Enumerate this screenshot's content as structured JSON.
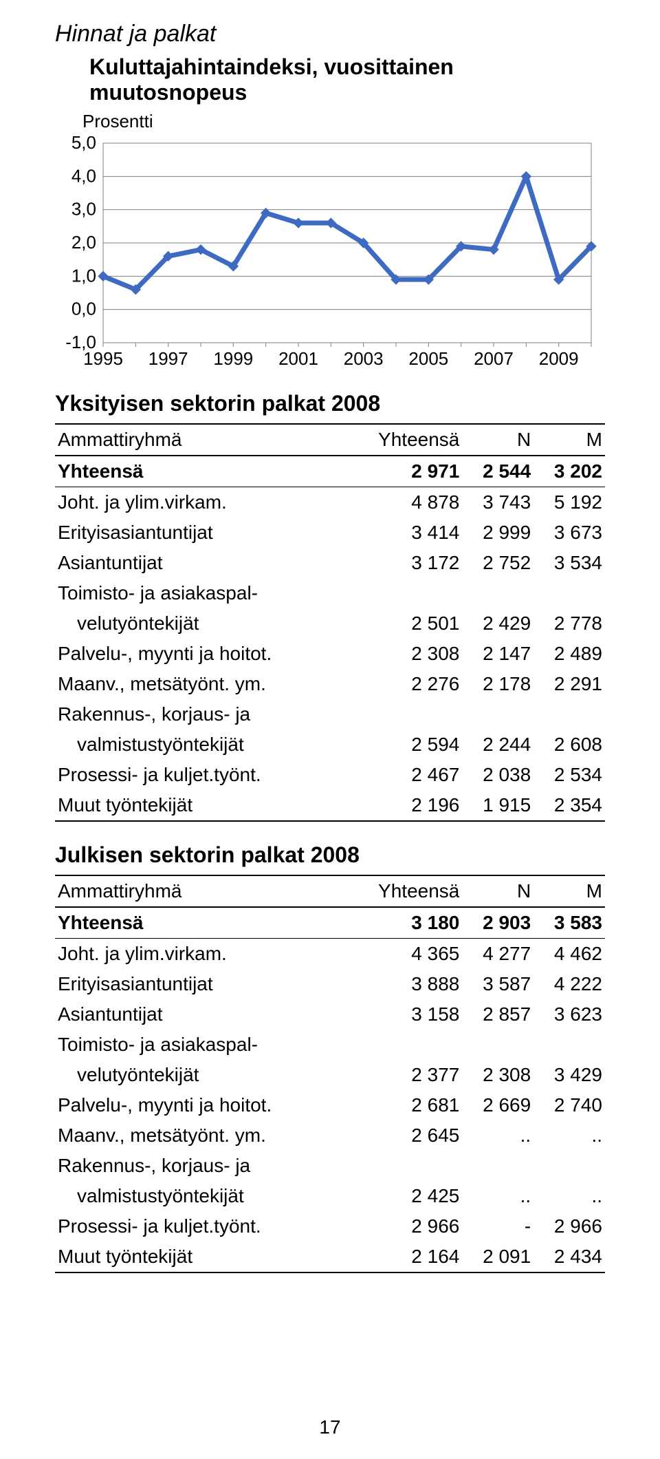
{
  "section_title": "Hinnat ja palkat",
  "chart": {
    "title": "Kuluttajahintaindeksi, vuosittainen muutosnopeus",
    "y_axis_label": "Prosentti",
    "type": "line",
    "x_labels": [
      "1995",
      "1997",
      "1999",
      "2001",
      "2003",
      "2005",
      "2007",
      "2009"
    ],
    "y_min": -1.0,
    "y_max": 5.0,
    "y_ticks": [
      "5,0",
      "4,0",
      "3,0",
      "2,0",
      "1,0",
      "0,0",
      "-1,0"
    ],
    "values": [
      1.0,
      0.6,
      1.6,
      1.8,
      1.3,
      2.9,
      2.6,
      2.6,
      2.0,
      0.9,
      0.9,
      1.9,
      1.8,
      4.0,
      0.9,
      1.9
    ],
    "line_color": "#3e6bc1",
    "marker_color": "#3e6bc1",
    "grid_color": "#808080",
    "background": "#ffffff",
    "line_width": 7,
    "marker_size": 7,
    "tick_fontsize": 26
  },
  "table1": {
    "title": "Yksityisen sektorin palkat 2008",
    "headers": [
      "Ammattiryhmä",
      "Yhteensä",
      "N",
      "M"
    ],
    "total_row": [
      "Yhteensä",
      "2 971",
      "2 544",
      "3 202"
    ],
    "rows": [
      {
        "label": "Joht. ja ylim.virkam.",
        "c1": "4 878",
        "c2": "3 743",
        "c3": "5 192",
        "indent": false
      },
      {
        "label": "Erityisasiantuntijat",
        "c1": "3 414",
        "c2": "2 999",
        "c3": "3 673",
        "indent": false
      },
      {
        "label": "Asiantuntijat",
        "c1": "3 172",
        "c2": "2 752",
        "c3": "3 534",
        "indent": false
      },
      {
        "label": "Toimisto- ja asiakaspal-",
        "c1": "",
        "c2": "",
        "c3": "",
        "indent": false
      },
      {
        "label": "velutyöntekijät",
        "c1": "2 501",
        "c2": "2 429",
        "c3": "2 778",
        "indent": true
      },
      {
        "label": "Palvelu-, myynti ja hoitot.",
        "c1": "2 308",
        "c2": "2 147",
        "c3": "2 489",
        "indent": false
      },
      {
        "label": "Maanv., metsätyönt. ym.",
        "c1": "2 276",
        "c2": "2 178",
        "c3": "2 291",
        "indent": false
      },
      {
        "label": "Rakennus-, korjaus- ja",
        "c1": "",
        "c2": "",
        "c3": "",
        "indent": false
      },
      {
        "label": "valmistustyöntekijät",
        "c1": "2 594",
        "c2": "2 244",
        "c3": "2 608",
        "indent": true
      },
      {
        "label": "Prosessi- ja kuljet.työnt.",
        "c1": "2 467",
        "c2": "2 038",
        "c3": "2 534",
        "indent": false
      },
      {
        "label": "Muut työntekijät",
        "c1": "2 196",
        "c2": "1 915",
        "c3": "2 354",
        "indent": false
      }
    ]
  },
  "table2": {
    "title": "Julkisen sektorin palkat 2008",
    "headers": [
      "Ammattiryhmä",
      "Yhteensä",
      "N",
      "M"
    ],
    "total_row": [
      "Yhteensä",
      "3 180",
      "2 903",
      "3 583"
    ],
    "rows": [
      {
        "label": "Joht. ja ylim.virkam.",
        "c1": "4 365",
        "c2": "4 277",
        "c3": "4 462",
        "indent": false
      },
      {
        "label": "Erityisasiantuntijat",
        "c1": "3 888",
        "c2": "3 587",
        "c3": "4 222",
        "indent": false
      },
      {
        "label": "Asiantuntijat",
        "c1": "3 158",
        "c2": "2 857",
        "c3": "3 623",
        "indent": false
      },
      {
        "label": "Toimisto- ja asiakaspal-",
        "c1": "",
        "c2": "",
        "c3": "",
        "indent": false
      },
      {
        "label": "velutyöntekijät",
        "c1": "2 377",
        "c2": "2 308",
        "c3": "3 429",
        "indent": true
      },
      {
        "label": "Palvelu-, myynti ja hoitot.",
        "c1": "2 681",
        "c2": "2 669",
        "c3": "2 740",
        "indent": false
      },
      {
        "label": "Maanv., metsätyönt. ym.",
        "c1": "2 645",
        "c2": "..",
        "c3": "..",
        "indent": false
      },
      {
        "label": "Rakennus-, korjaus- ja",
        "c1": "",
        "c2": "",
        "c3": "",
        "indent": false
      },
      {
        "label": "valmistustyöntekijät",
        "c1": "2 425",
        "c2": "..",
        "c3": "..",
        "indent": true
      },
      {
        "label": "Prosessi- ja kuljet.työnt.",
        "c1": "2 966",
        "c2": "-",
        "c3": "2 966",
        "indent": false
      },
      {
        "label": "Muut työntekijät",
        "c1": "2 164",
        "c2": "2 091",
        "c3": "2 434",
        "indent": false
      }
    ]
  },
  "page_number": "17"
}
